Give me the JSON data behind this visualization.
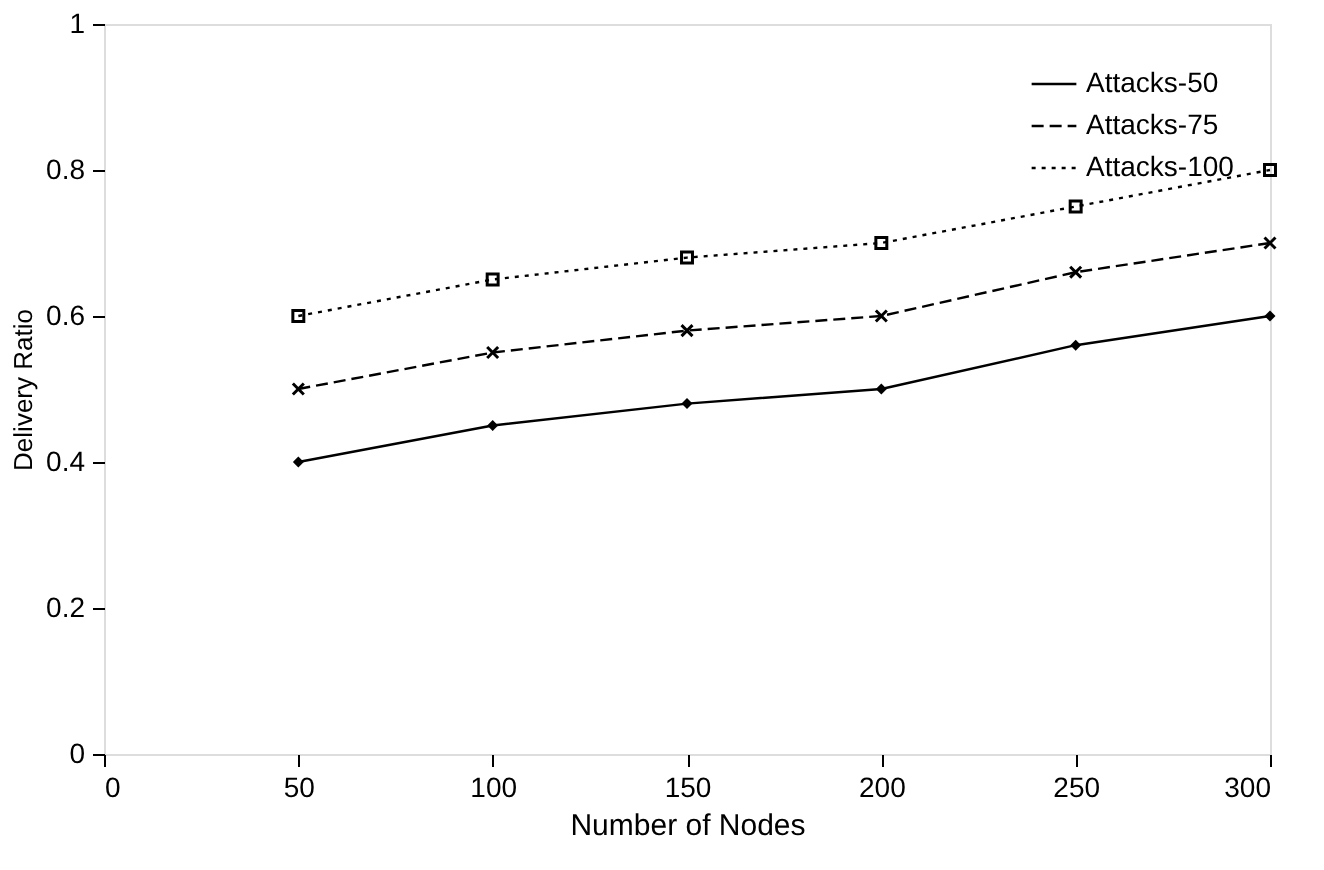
{
  "chart_data": {
    "type": "line",
    "xlabel": "Number of Nodes",
    "ylabel": "Delivery Ratio",
    "x": [
      50,
      100,
      150,
      200,
      250,
      300
    ],
    "series": [
      {
        "name": "Attacks-50",
        "color": "#000000",
        "line_style": "solid",
        "marker": "diamond",
        "values": [
          0.4,
          0.45,
          0.48,
          0.5,
          0.56,
          0.6
        ]
      },
      {
        "name": "Attacks-75",
        "color": "#000000",
        "line_style": "dashed",
        "marker": "cross",
        "values": [
          0.5,
          0.55,
          0.58,
          0.6,
          0.66,
          0.7
        ]
      },
      {
        "name": "Attacks-100",
        "color": "#000000",
        "line_style": "dotted",
        "marker": "square",
        "values": [
          0.6,
          0.65,
          0.68,
          0.7,
          0.75,
          0.8
        ]
      }
    ],
    "xlim": [
      0,
      300
    ],
    "xticks": [
      0,
      50,
      100,
      150,
      200,
      250,
      300
    ],
    "ylim": [
      0,
      1
    ],
    "yticks": [
      0,
      0.2,
      0.4,
      0.6,
      0.8,
      1
    ],
    "grid": false,
    "legend": "top right"
  }
}
